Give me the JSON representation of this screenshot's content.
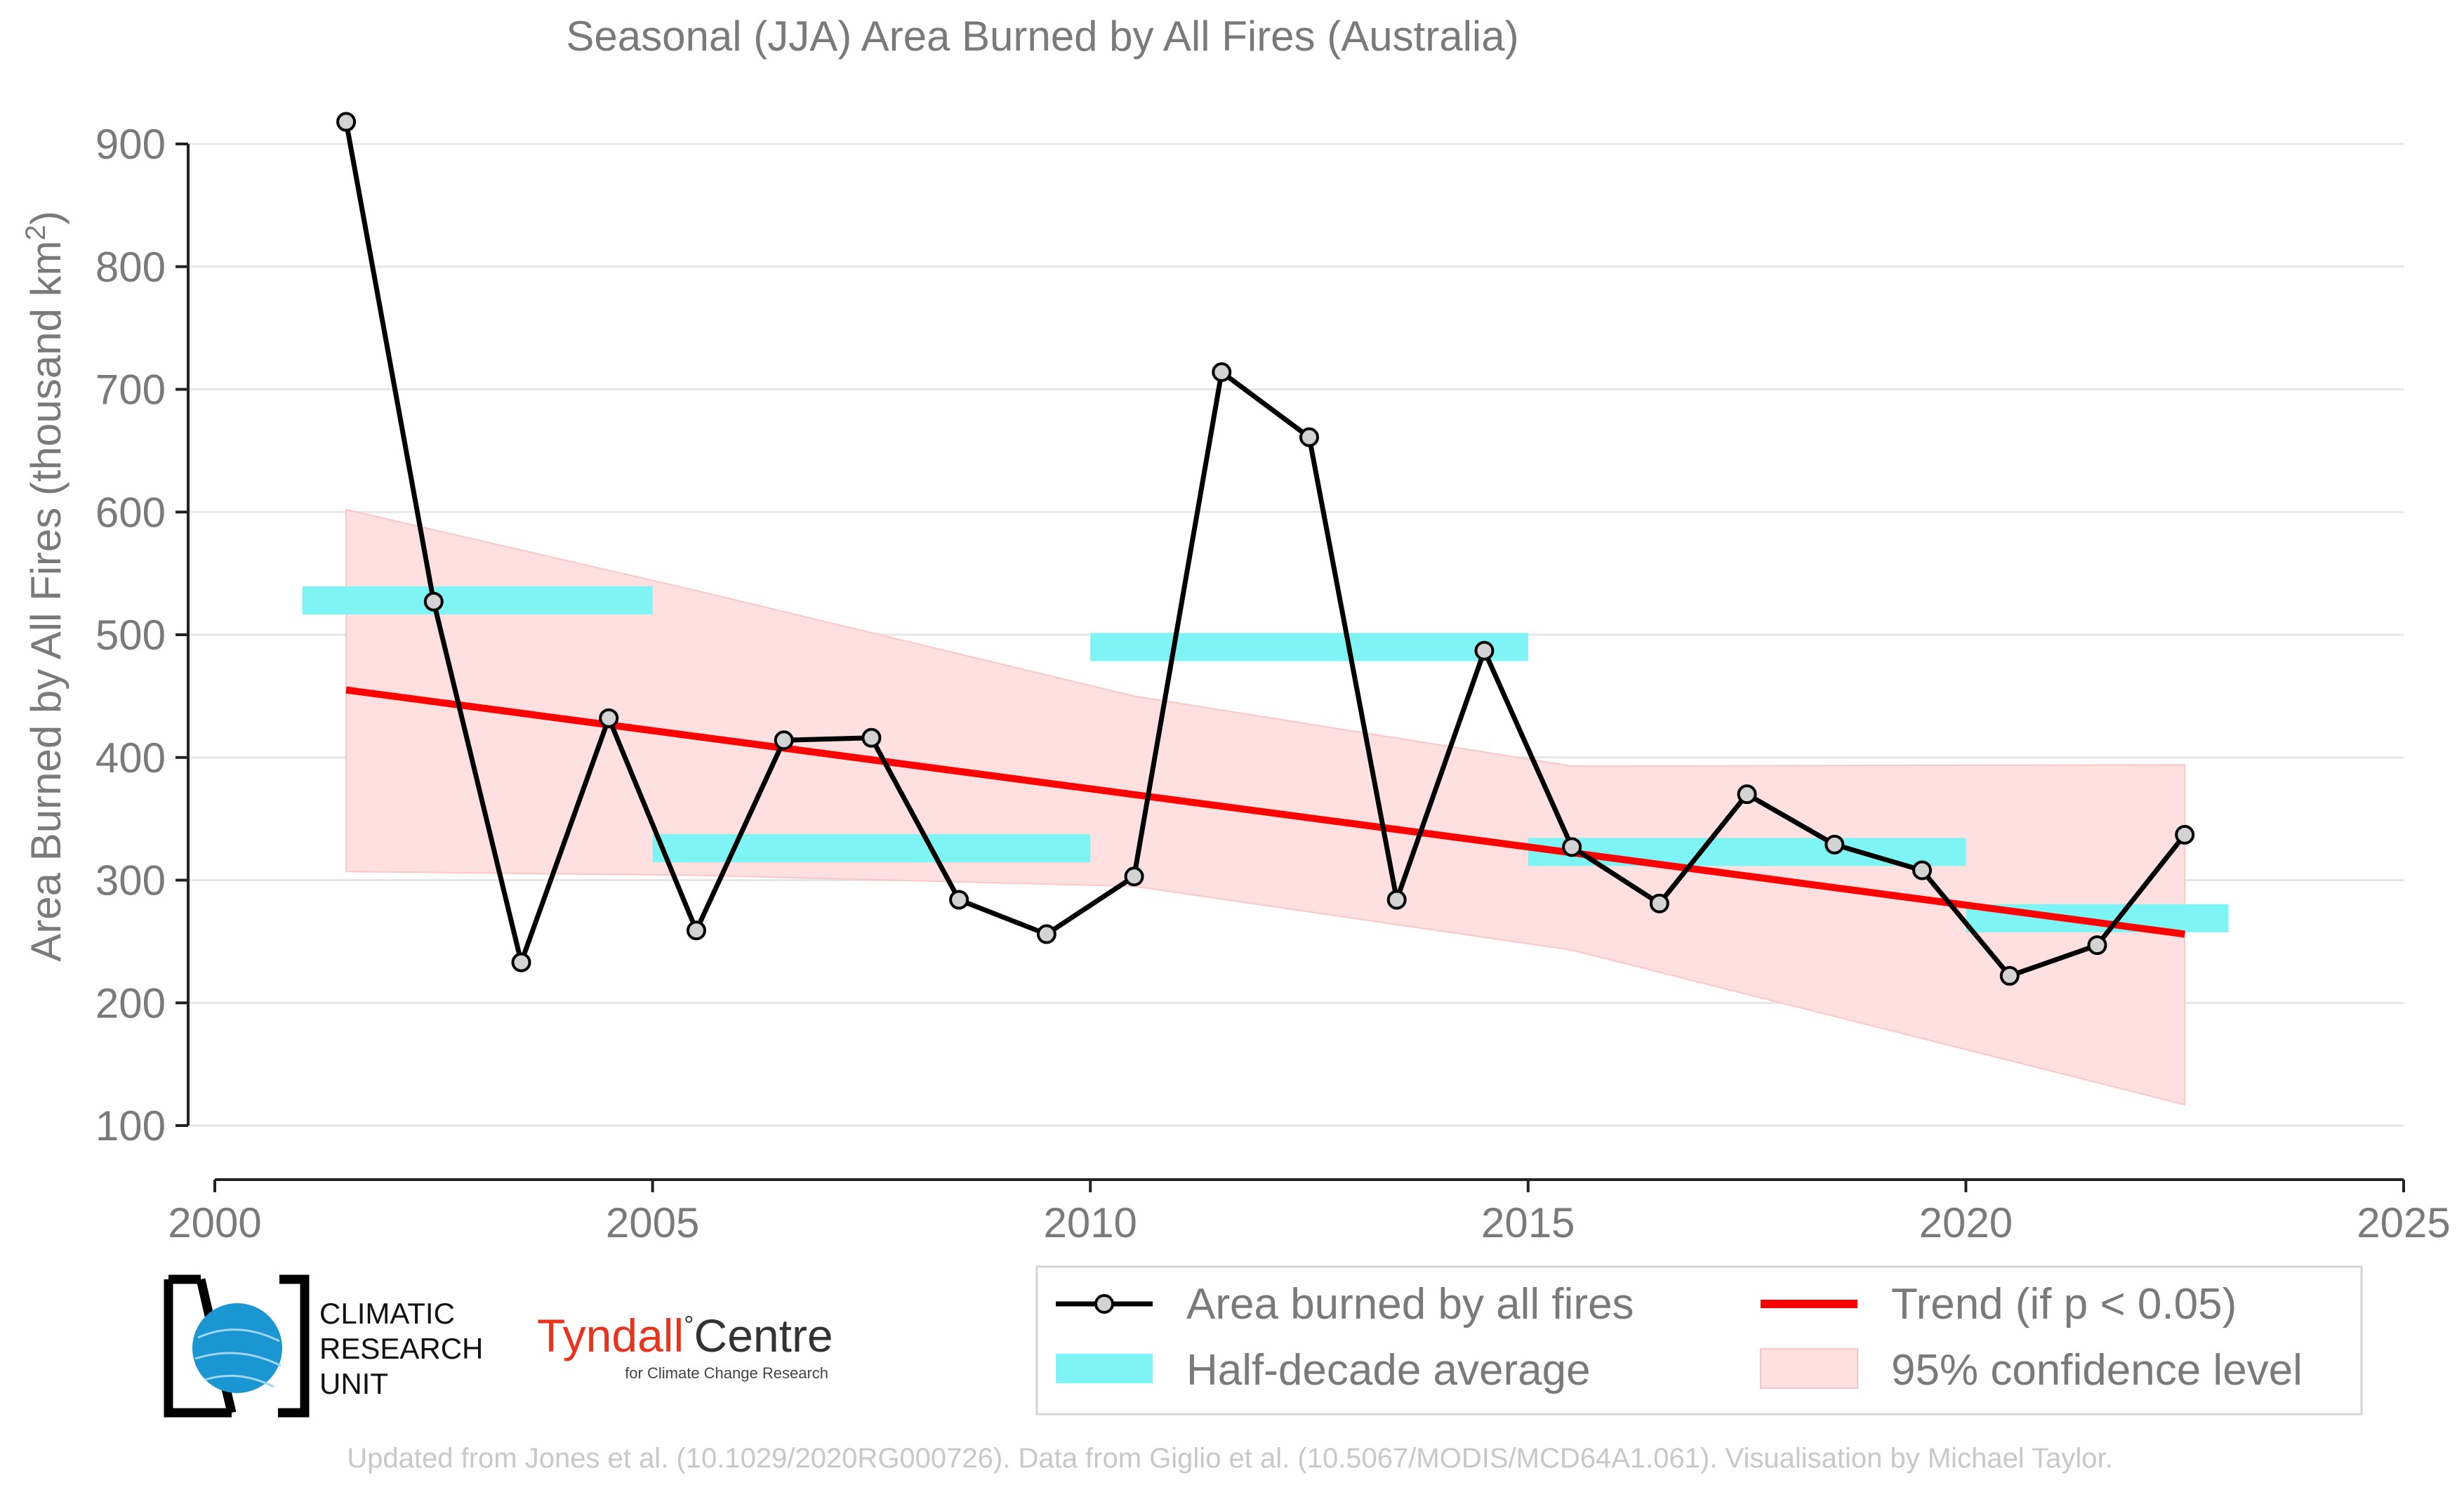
{
  "chart_data": {
    "type": "line",
    "title": "Seasonal (JJA) Area Burned by All Fires (Australia)",
    "ylabel": "Area Burned by All Fires (thousand km",
    "ylabel_sup": "2",
    "ylabel_end": ")",
    "xlabel": "",
    "xlim": [
      2000,
      2025
    ],
    "ylim": [
      100,
      900
    ],
    "xticks": [
      "2000",
      "2005",
      "2010",
      "2015",
      "2020",
      "2025"
    ],
    "yticks": [
      "100",
      "200",
      "300",
      "400",
      "500",
      "600",
      "700",
      "800",
      "900"
    ],
    "grid": true,
    "legend_position": "bottom-right",
    "series": [
      {
        "name": "Area burned by all fires",
        "color": "#000000",
        "x": [
          2001.5,
          2002.5,
          2003.5,
          2004.5,
          2005.5,
          2006.5,
          2007.5,
          2008.5,
          2009.5,
          2010.5,
          2011.5,
          2012.5,
          2013.5,
          2014.5,
          2015.5,
          2016.5,
          2017.5,
          2018.5,
          2019.5,
          2020.5,
          2021.5,
          2022.5
        ],
        "values": [
          918,
          527,
          233,
          432,
          259,
          414,
          416,
          284,
          256,
          303,
          714,
          661,
          284,
          487,
          327,
          281,
          370,
          329,
          308,
          222,
          247,
          337
        ]
      }
    ],
    "half_decade_average": {
      "name": "Half-decade average",
      "color": "#7ff4f4",
      "periods": [
        {
          "x0": 2001,
          "x1": 2005,
          "value": 528
        },
        {
          "x0": 2005,
          "x1": 2010,
          "value": 326
        },
        {
          "x0": 2010,
          "x1": 2015,
          "value": 490
        },
        {
          "x0": 2015,
          "x1": 2020,
          "value": 323
        },
        {
          "x0": 2020,
          "x1": 2023,
          "value": 269
        }
      ]
    },
    "trend": {
      "name": "Trend (if p < 0.05)",
      "color": "#ff0000",
      "x": [
        2001.5,
        2022.5
      ],
      "values": [
        455,
        256
      ]
    },
    "confidence_band": {
      "name": "95% confidence level",
      "color": "#ffe0e0",
      "x": [
        2001.5,
        2005.5,
        2010.5,
        2015.5,
        2022.5
      ],
      "upper": [
        602,
        536,
        450,
        393,
        394
      ],
      "lower": [
        307,
        304,
        295,
        243,
        117
      ]
    }
  },
  "legend": {
    "area_label": "Area burned by all fires",
    "trend_label": "Trend (if p < 0.05)",
    "half_decade_label": "Half-decade average",
    "confidence_label": "95% confidence level"
  },
  "logos": {
    "cru_line1": "CLIMATIC",
    "cru_line2": "RESEARCH",
    "cru_line3": "UNIT",
    "tyndall_name": "Tyndall",
    "tyndall_degree": "°",
    "tyndall_centre": "Centre",
    "tyndall_sub": "for Climate Change Research"
  },
  "footer": "Updated from Jones et al. (10.1029/2020RG000726). Data from Giglio et al. (10.5067/MODIS/MCD64A1.061). Visualisation by Michael Taylor."
}
